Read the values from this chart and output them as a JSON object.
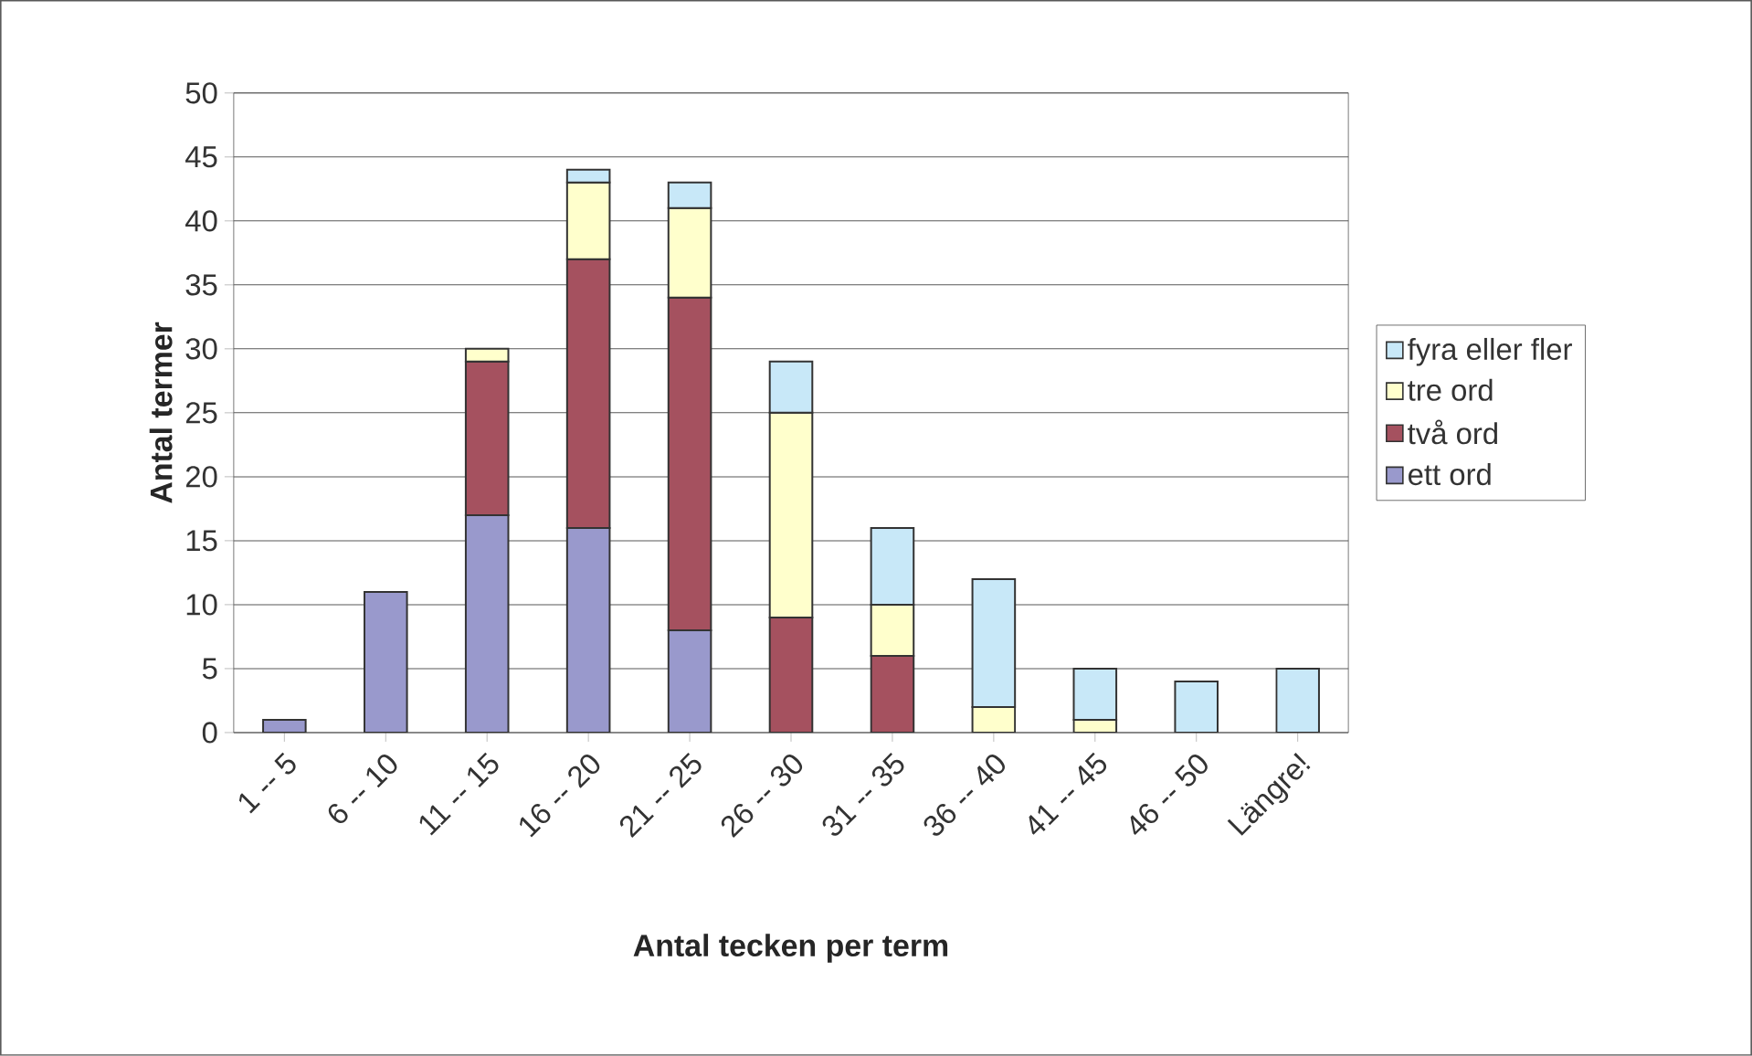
{
  "chart_data": {
    "type": "bar",
    "stacked": true,
    "xlabel": "Antal tecken per term",
    "ylabel": "Antal termer",
    "categories": [
      "1 -- 5",
      "6 -- 10",
      "11 -- 15",
      "16 -- 20",
      "21 -- 25",
      "26 -- 30",
      "31 -- 35",
      "36 -- 40",
      "41 -- 45",
      "46 -- 50",
      "Längre!"
    ],
    "series": [
      {
        "name": "ett ord",
        "color": "#9999cc",
        "values": [
          1,
          11,
          17,
          16,
          8,
          null,
          null,
          null,
          null,
          null,
          null
        ]
      },
      {
        "name": "två ord",
        "color": "#a5515f",
        "values": [
          null,
          null,
          12,
          21,
          26,
          9,
          6,
          null,
          null,
          null,
          null
        ]
      },
      {
        "name": "tre ord",
        "color": "#ffffcc",
        "values": [
          null,
          null,
          1,
          6,
          7,
          16,
          4,
          2,
          1,
          null,
          null
        ]
      },
      {
        "name": "fyra eller fler",
        "color": "#c8e8f8",
        "values": [
          null,
          null,
          null,
          1,
          2,
          4,
          6,
          10,
          4,
          4,
          5
        ]
      }
    ],
    "ylim": [
      0,
      50
    ],
    "yticks": [
      0,
      5,
      10,
      15,
      20,
      25,
      30,
      35,
      40,
      45,
      50
    ],
    "grid": "y",
    "legend": "right"
  }
}
